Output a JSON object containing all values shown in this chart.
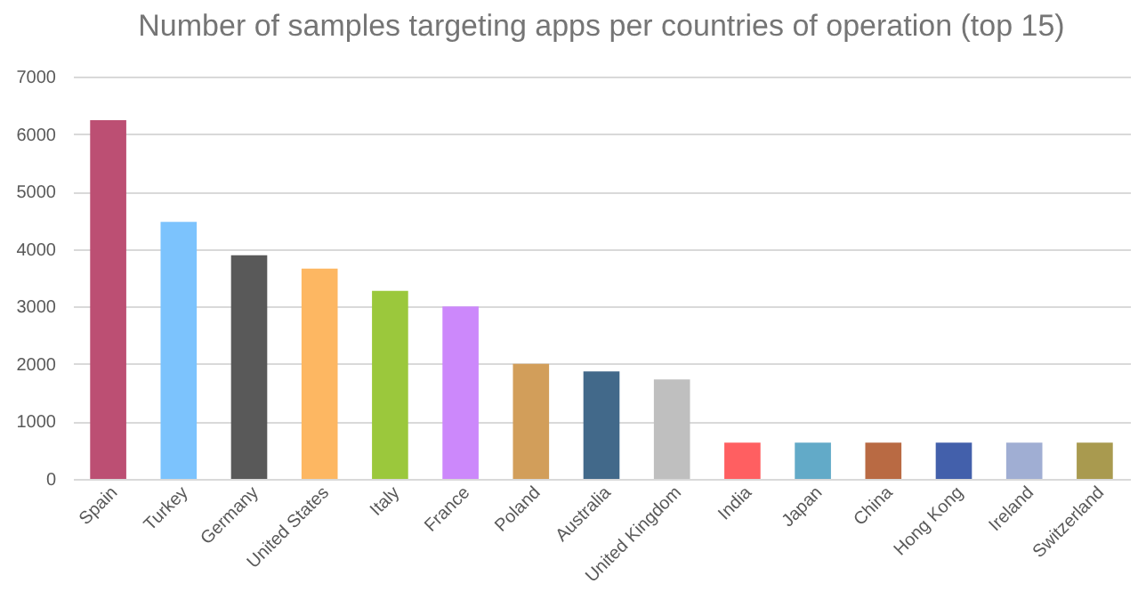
{
  "chart_data": {
    "type": "bar",
    "title": "Number of samples targeting apps per countries of operation (top 15)",
    "categories": [
      "Spain",
      "Turkey",
      "Germany",
      "United States",
      "Italy",
      "France",
      "Poland",
      "Australia",
      "United Kingdom",
      "India",
      "Japan",
      "China",
      "Hong Kong",
      "Ireland",
      "Switzerland"
    ],
    "values": [
      6240,
      4470,
      3890,
      3660,
      3270,
      3000,
      2000,
      1870,
      1730,
      630,
      630,
      630,
      630,
      630,
      630
    ],
    "colors": [
      "#bc4f73",
      "#7cc3fd",
      "#595959",
      "#fdb762",
      "#9bc83c",
      "#cc88fb",
      "#d29e5a",
      "#42698a",
      "#bfbfbf",
      "#ff5f61",
      "#62aac8",
      "#b96a43",
      "#4360ab",
      "#a0aed3",
      "#a99a4f"
    ],
    "ylim": [
      0,
      7000
    ],
    "yticks": [
      0,
      1000,
      2000,
      3000,
      4000,
      5000,
      6000,
      7000
    ],
    "grid": "y"
  }
}
